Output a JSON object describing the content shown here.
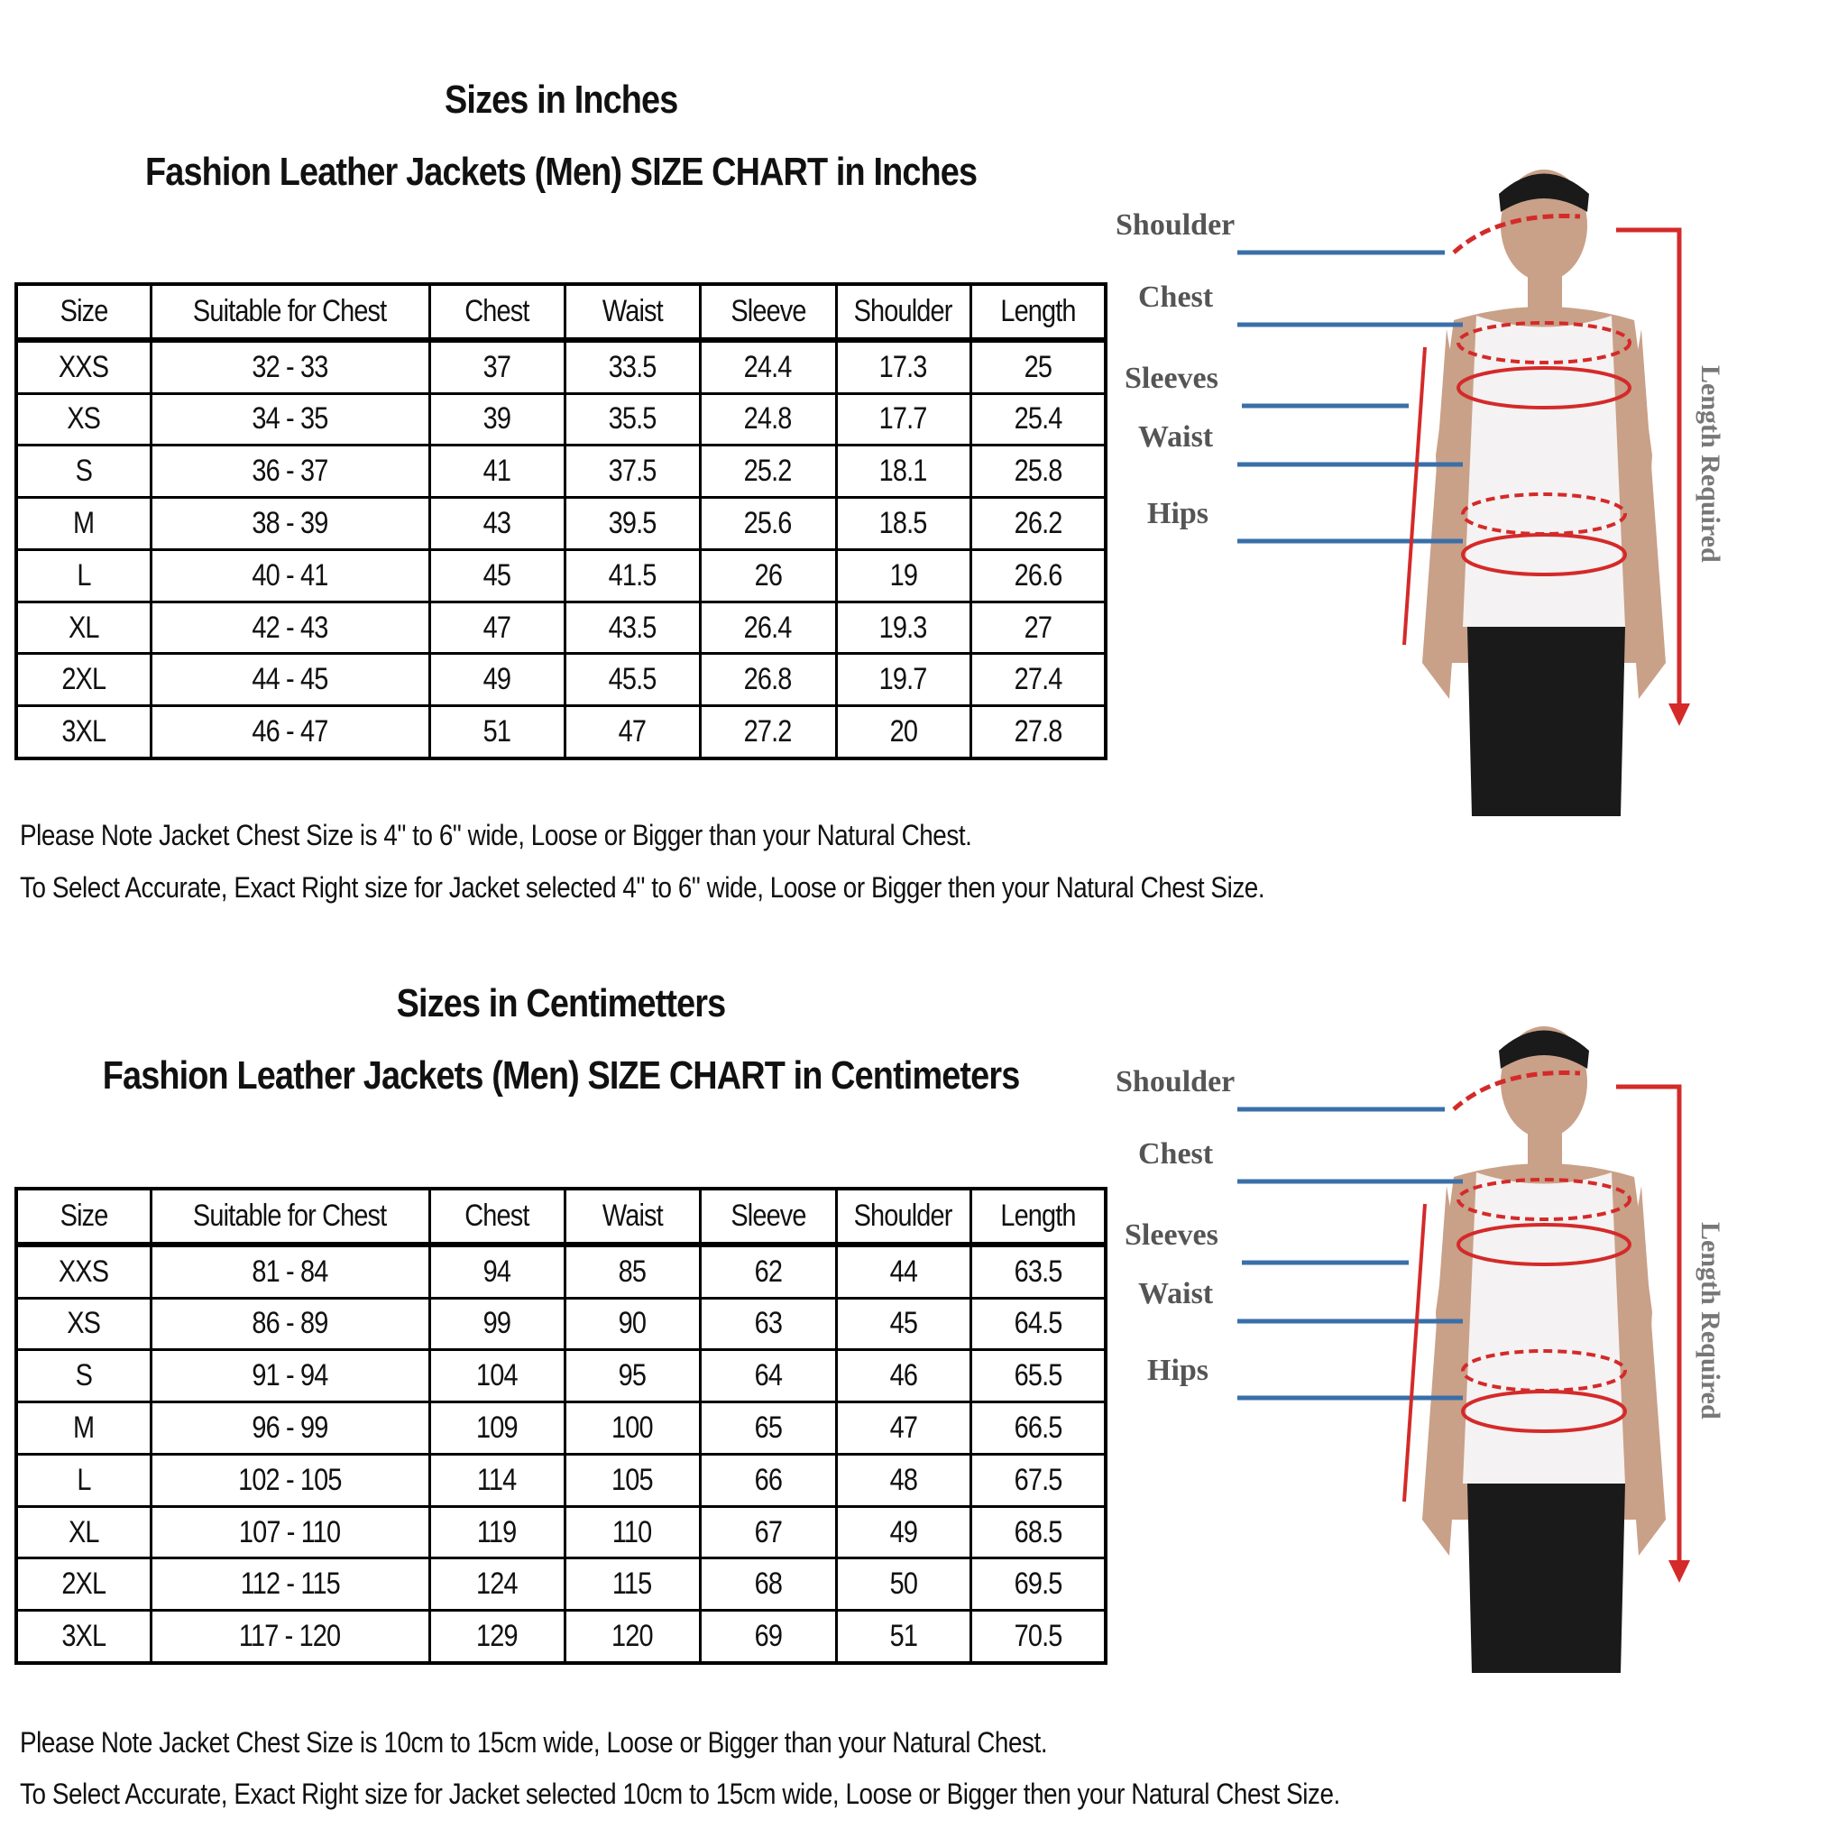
{
  "inches": {
    "heading": "Sizes in Inches",
    "title": "Fashion Leather Jackets (Men)  SIZE CHART  in Inches",
    "columns": [
      "Size",
      "Suitable for Chest",
      "Chest",
      "Waist",
      "Sleeve",
      "Shoulder",
      "Length"
    ],
    "rows": [
      [
        "XXS",
        "32 - 33",
        "37",
        "33.5",
        "24.4",
        "17.3",
        "25"
      ],
      [
        "XS",
        "34 - 35",
        "39",
        "35.5",
        "24.8",
        "17.7",
        "25.4"
      ],
      [
        "S",
        "36 - 37",
        "41",
        "37.5",
        "25.2",
        "18.1",
        "25.8"
      ],
      [
        "M",
        "38 - 39",
        "43",
        "39.5",
        "25.6",
        "18.5",
        "26.2"
      ],
      [
        "L",
        "40 - 41",
        "45",
        "41.5",
        "26",
        "19",
        "26.6"
      ],
      [
        "XL",
        "42 - 43",
        "47",
        "43.5",
        "26.4",
        "19.3",
        "27"
      ],
      [
        "2XL",
        "44 - 45",
        "49",
        "45.5",
        "26.8",
        "19.7",
        "27.4"
      ],
      [
        "3XL",
        "46 - 47",
        "51",
        "47",
        "27.2",
        "20",
        "27.8"
      ]
    ],
    "note1": "Please Note Jacket Chest Size is 4\" to 6\" wide, Loose or Bigger than your Natural Chest.",
    "note2": "To Select Accurate, Exact Right size for Jacket selected 4\" to 6\" wide, Loose or Bigger then your Natural Chest Size."
  },
  "centimeters": {
    "heading": "Sizes in Centimetters",
    "title": "Fashion Leather Jackets (Men)  SIZE CHART  in Centimeters",
    "columns": [
      "Size",
      "Suitable for Chest",
      "Chest",
      "Waist",
      "Sleeve",
      "Shoulder",
      "Length"
    ],
    "rows": [
      [
        "XXS",
        "81 - 84",
        "94",
        "85",
        "62",
        "44",
        "63.5"
      ],
      [
        "XS",
        "86 - 89",
        "99",
        "90",
        "63",
        "45",
        "64.5"
      ],
      [
        "S",
        "91 - 94",
        "104",
        "95",
        "64",
        "46",
        "65.5"
      ],
      [
        "M",
        "96 - 99",
        "109",
        "100",
        "65",
        "47",
        "66.5"
      ],
      [
        "L",
        "102 - 105",
        "114",
        "105",
        "66",
        "48",
        "67.5"
      ],
      [
        "XL",
        "107 - 110",
        "119",
        "110",
        "67",
        "49",
        "68.5"
      ],
      [
        "2XL",
        "112 - 115",
        "124",
        "115",
        "68",
        "50",
        "69.5"
      ],
      [
        "3XL",
        "117 - 120",
        "129",
        "120",
        "69",
        "51",
        "70.5"
      ]
    ],
    "note1": "Please Note Jacket Chest Size is 10cm to 15cm wide, Loose or Bigger than your Natural Chest.",
    "note2": "To Select Accurate, Exact Right size for Jacket selected 10cm to 15cm wide, Loose or Bigger then your Natural Chest Size."
  },
  "figure": {
    "labels": [
      "Shoulder",
      "Chest",
      "Sleeves",
      "Waist",
      "Hips"
    ],
    "length_label": "Length Required",
    "colors": {
      "line": "#3a6fa8",
      "arrow": "#d42a2a",
      "label": "#555555"
    }
  }
}
